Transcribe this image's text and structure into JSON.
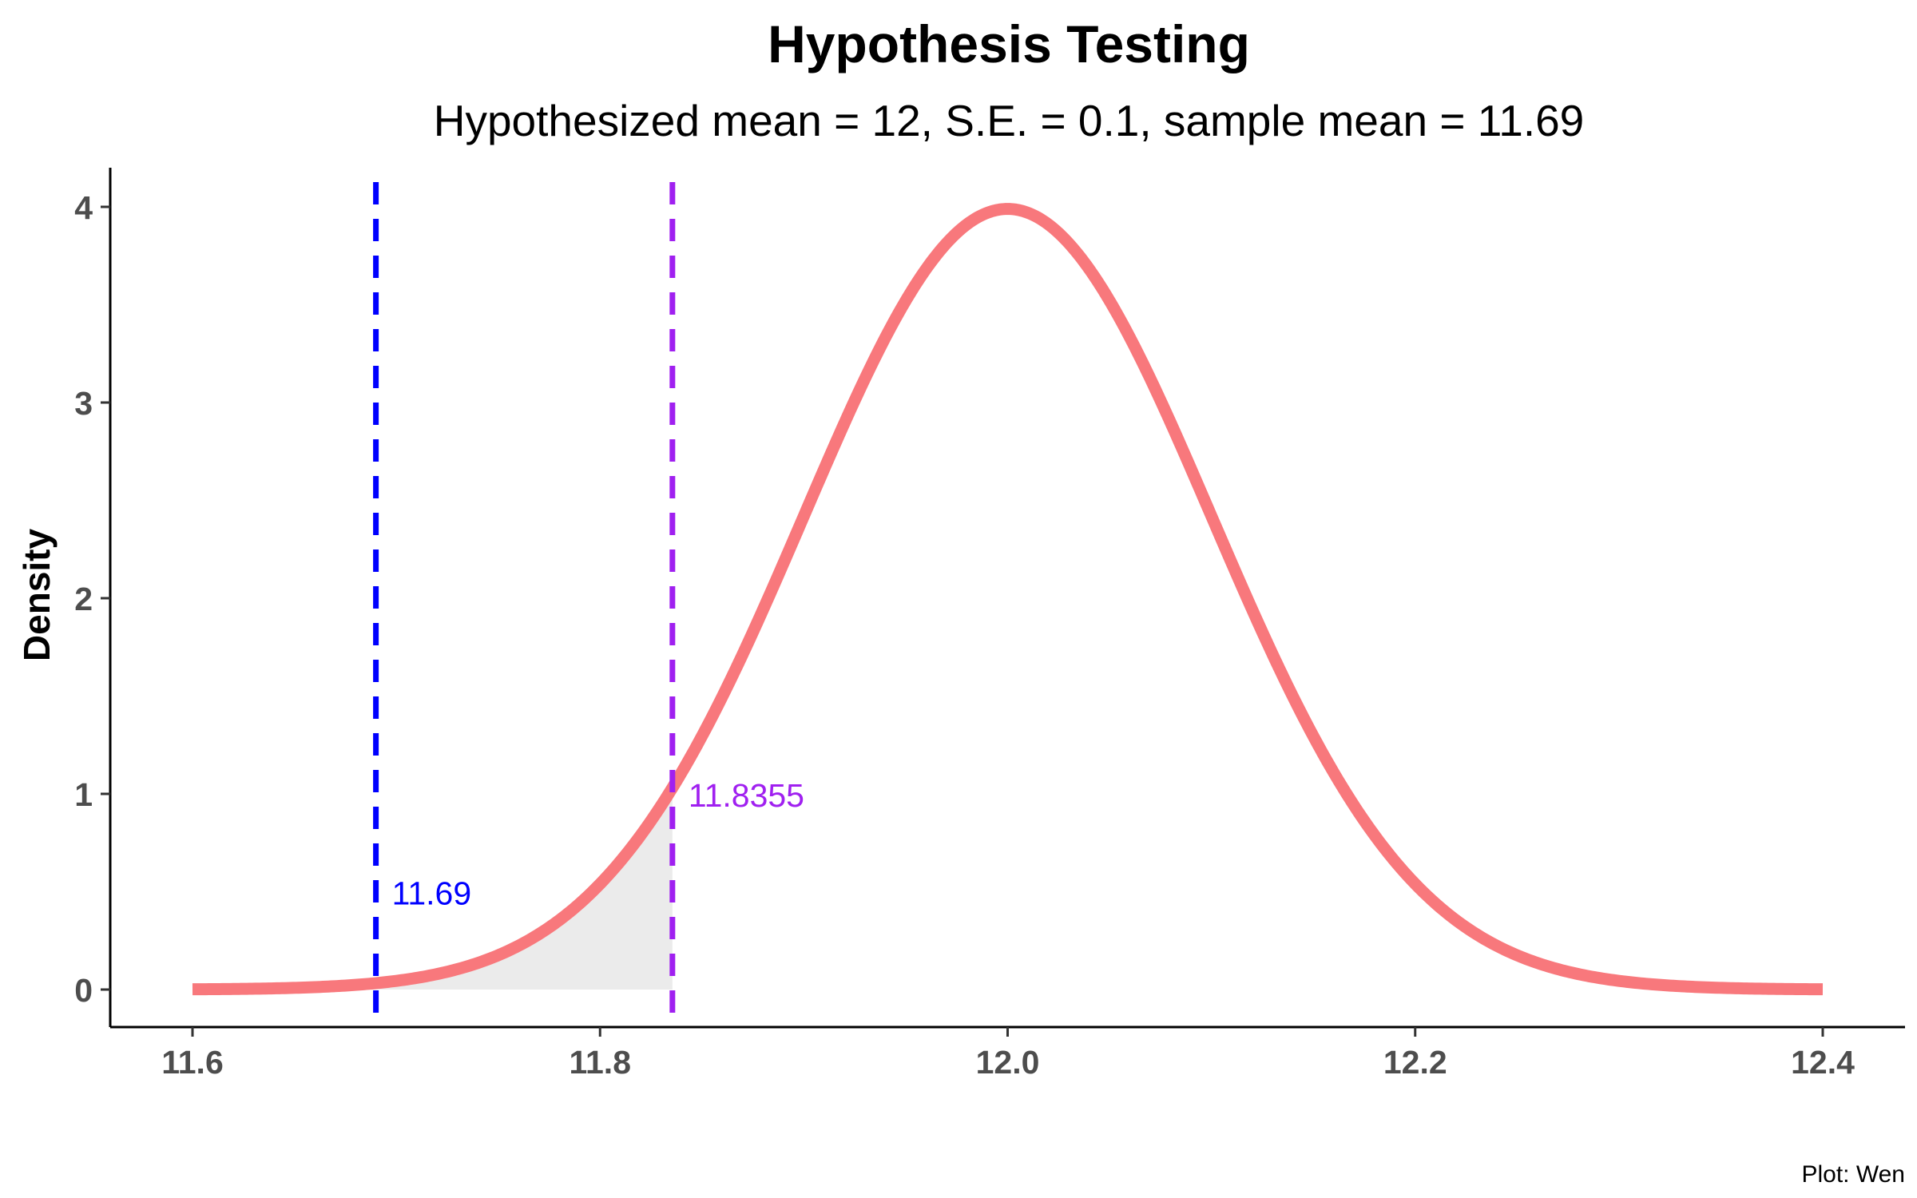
{
  "chart_data": {
    "type": "area",
    "title": "Hypothesis Testing",
    "subtitle": "Hypothesized mean = 12, S.E. = 0.1, sample mean = 11.69",
    "xlabel": "",
    "ylabel": "Density",
    "caption": "Plot: Wen",
    "xlim": [
      11.6,
      12.4
    ],
    "ylim": [
      0,
      4
    ],
    "x_ticks": [
      11.6,
      11.8,
      12.0,
      12.2,
      12.4
    ],
    "x_tick_labels": [
      "11.6",
      "11.8",
      "12.0",
      "12.2",
      "12.4"
    ],
    "y_ticks": [
      0,
      1,
      2,
      3,
      4
    ],
    "y_tick_labels": [
      "0",
      "1",
      "2",
      "3",
      "4"
    ],
    "grid": false,
    "distribution": {
      "kind": "normal",
      "mean": 12,
      "sd": 0.1,
      "color": "#F8787C"
    },
    "shaded_region": {
      "from": 11.6,
      "to": 11.8355,
      "color": "#EBEBEB"
    },
    "reference_lines": [
      {
        "x": 11.69,
        "label": "11.69",
        "color": "#0000FF",
        "style": "dashed"
      },
      {
        "x": 11.8355,
        "label": "11.8355",
        "color": "#A020F0",
        "style": "dashed"
      }
    ],
    "annotations": [
      {
        "text": "11.69",
        "x": 11.69,
        "y": 0.5,
        "color": "#0000FF"
      },
      {
        "text": "11.8355",
        "x": 11.8355,
        "y": 1.0,
        "color": "#A020F0"
      }
    ]
  }
}
